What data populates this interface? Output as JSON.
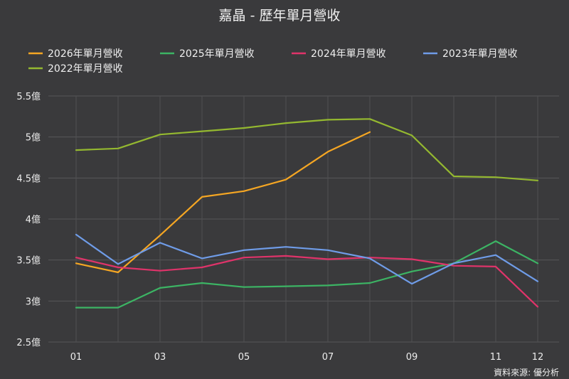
{
  "chart_data": {
    "type": "line",
    "title": "嘉晶 - 歷年單月營收",
    "xlabel": "",
    "ylabel": "",
    "x": [
      "01",
      "02",
      "03",
      "04",
      "05",
      "06",
      "07",
      "08",
      "09",
      "10",
      "11",
      "12"
    ],
    "x_tick_labels": [
      "01",
      "",
      "03",
      "",
      "05",
      "",
      "07",
      "",
      "09",
      "",
      "11",
      "12"
    ],
    "y_unit": "億",
    "ylim": [
      2.5,
      5.5
    ],
    "y_ticks": [
      2.5,
      3,
      3.5,
      4,
      4.5,
      5,
      5.5
    ],
    "y_tick_labels": [
      "2.5億",
      "3億",
      "3.5億",
      "4億",
      "4.5億",
      "5億",
      "5.5億"
    ],
    "grid": true,
    "legend_position": "top",
    "series": [
      {
        "name": "2026年單月營收",
        "color": "#f5a623",
        "values": [
          3.46,
          3.35,
          3.8,
          4.27,
          4.34,
          4.48,
          4.82,
          5.06,
          null,
          null,
          null,
          null
        ]
      },
      {
        "name": "2025年單月營收",
        "color": "#3cb464",
        "values": [
          2.92,
          2.92,
          3.16,
          3.22,
          3.17,
          3.18,
          3.19,
          3.22,
          3.36,
          3.46,
          3.73,
          3.46
        ]
      },
      {
        "name": "2024年單月營收",
        "color": "#e0336a",
        "values": [
          3.53,
          3.41,
          3.37,
          3.41,
          3.53,
          3.55,
          3.51,
          3.53,
          3.51,
          3.43,
          3.42,
          2.93
        ]
      },
      {
        "name": "2023年單月營收",
        "color": "#6f9ce8",
        "values": [
          3.81,
          3.45,
          3.71,
          3.52,
          3.62,
          3.66,
          3.62,
          3.52,
          3.21,
          3.46,
          3.56,
          3.24
        ]
      },
      {
        "name": "2022年單月營收",
        "color": "#94b830",
        "values": [
          4.84,
          4.86,
          5.03,
          5.07,
          5.11,
          5.17,
          5.21,
          5.22,
          5.02,
          4.52,
          4.51,
          4.47
        ]
      }
    ],
    "source": "資料來源: 優分析"
  }
}
